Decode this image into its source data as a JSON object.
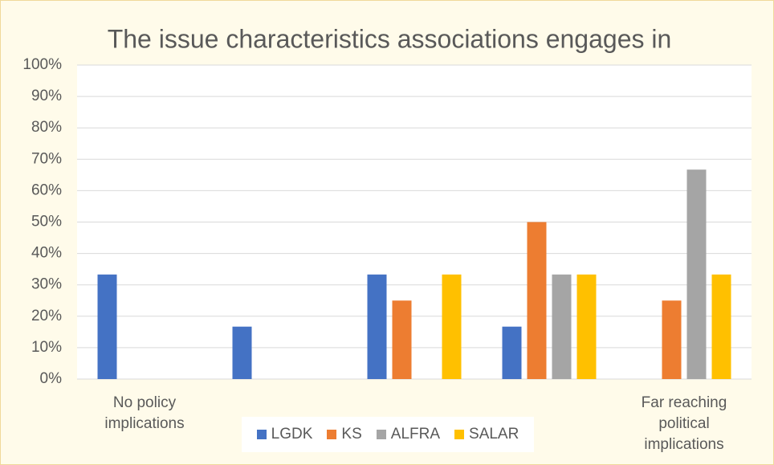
{
  "chart_data": {
    "type": "bar",
    "title": "The issue characteristics associations engages in",
    "categories": [
      "No policy implications",
      null,
      null,
      null,
      "Far reaching political implications"
    ],
    "series": [
      {
        "name": "LGDK",
        "color": "#4472c4",
        "values": [
          33.3,
          16.7,
          33.3,
          16.7,
          0
        ]
      },
      {
        "name": "KS",
        "color": "#ed7d31",
        "values": [
          0,
          0,
          25,
          50,
          25
        ]
      },
      {
        "name": "ALFRA",
        "color": "#a5a5a5",
        "values": [
          0,
          0,
          0,
          33.3,
          66.7
        ]
      },
      {
        "name": "SALAR",
        "color": "#ffc000",
        "values": [
          0,
          0,
          33.3,
          33.3,
          33.3
        ]
      }
    ],
    "ylim": [
      0,
      100
    ],
    "yticks": [
      {
        "value": 0,
        "label": "0%"
      },
      {
        "value": 10,
        "label": "10%"
      },
      {
        "value": 20,
        "label": "20%"
      },
      {
        "value": 30,
        "label": "30%"
      },
      {
        "value": 40,
        "label": "40%"
      },
      {
        "value": 50,
        "label": "50%"
      },
      {
        "value": 60,
        "label": "60%"
      },
      {
        "value": 70,
        "label": "70%"
      },
      {
        "value": 80,
        "label": "80%"
      },
      {
        "value": 90,
        "label": "90%"
      },
      {
        "value": 100,
        "label": "100%"
      }
    ],
    "grid": true
  }
}
